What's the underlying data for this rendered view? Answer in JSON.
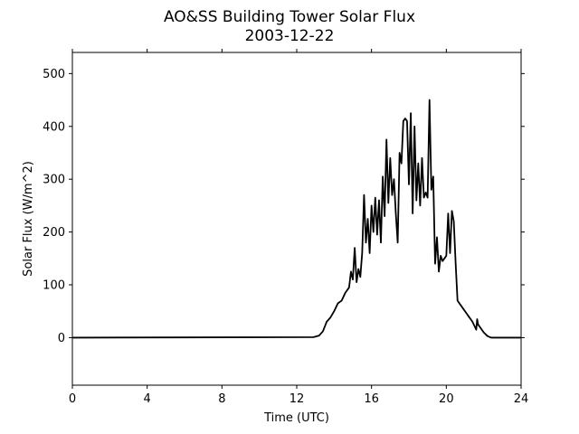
{
  "chart_data": {
    "type": "line",
    "title": "AO&SS Building Tower Solar Flux",
    "subtitle": "2003-12-22",
    "xlabel": "Time (UTC)",
    "ylabel": "Solar Flux (W/m^2)",
    "xlim": [
      0,
      24
    ],
    "ylim": [
      -90,
      540
    ],
    "xticks": [
      0,
      4,
      8,
      12,
      16,
      20,
      24
    ],
    "yticks": [
      0,
      100,
      200,
      300,
      400,
      500
    ],
    "grid": false,
    "series": [
      {
        "color": "#000000",
        "x": [
          0,
          12.9,
          13.2,
          13.4,
          13.6,
          13.8,
          14.0,
          14.2,
          14.4,
          14.6,
          14.8,
          14.9,
          15.0,
          15.1,
          15.2,
          15.3,
          15.4,
          15.5,
          15.6,
          15.7,
          15.8,
          15.9,
          16.0,
          16.1,
          16.2,
          16.3,
          16.4,
          16.5,
          16.6,
          16.7,
          16.8,
          16.9,
          17.0,
          17.1,
          17.2,
          17.3,
          17.4,
          17.5,
          17.6,
          17.7,
          17.8,
          17.9,
          18.0,
          18.1,
          18.2,
          18.3,
          18.4,
          18.5,
          18.6,
          18.7,
          18.8,
          18.9,
          19.0,
          19.1,
          19.2,
          19.3,
          19.4,
          19.5,
          19.6,
          19.7,
          19.8,
          19.9,
          20.0,
          20.1,
          20.2,
          20.3,
          20.4,
          20.5,
          20.6,
          20.7,
          20.8,
          20.9,
          21.0,
          21.2,
          21.4,
          21.6,
          21.65,
          21.7,
          21.8,
          22.0,
          22.2,
          22.4,
          22.6,
          23.0,
          24
        ],
        "y": [
          0,
          1,
          4,
          12,
          30,
          38,
          50,
          65,
          70,
          85,
          95,
          125,
          110,
          170,
          105,
          130,
          115,
          160,
          270,
          180,
          225,
          160,
          250,
          200,
          265,
          195,
          260,
          180,
          305,
          230,
          375,
          255,
          340,
          270,
          300,
          235,
          180,
          350,
          330,
          410,
          415,
          410,
          290,
          425,
          235,
          400,
          260,
          330,
          250,
          340,
          265,
          275,
          265,
          450,
          280,
          305,
          140,
          190,
          125,
          155,
          145,
          150,
          155,
          235,
          160,
          240,
          220,
          140,
          70,
          65,
          60,
          55,
          50,
          40,
          30,
          15,
          35,
          25,
          20,
          10,
          3,
          0,
          0,
          0,
          0
        ]
      }
    ]
  }
}
